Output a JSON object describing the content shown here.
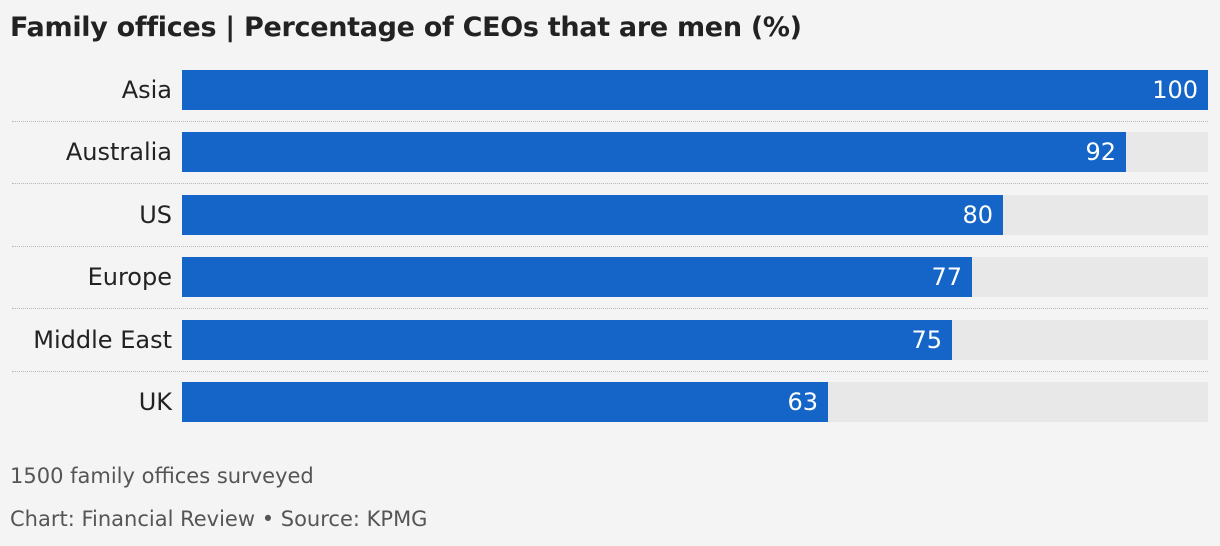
{
  "title": "Family offices | Percentage of CEOs that are men (%)",
  "footnote": "1500 family offices surveyed",
  "credit": "Chart: Financial Review • Source: KPMG",
  "colors": {
    "bar": "#1565c8",
    "track": "#e8e8e8",
    "background": "#f4f4f4"
  },
  "chart_data": {
    "type": "bar",
    "orientation": "horizontal",
    "title": "Family offices | Percentage of CEOs that are men (%)",
    "categories": [
      "Asia",
      "Australia",
      "US",
      "Europe",
      "Middle East",
      "UK"
    ],
    "values": [
      100,
      92,
      80,
      77,
      75,
      63
    ],
    "xlim": [
      0,
      100
    ],
    "xlabel": "",
    "ylabel": "",
    "grid": false,
    "legend": "none"
  }
}
